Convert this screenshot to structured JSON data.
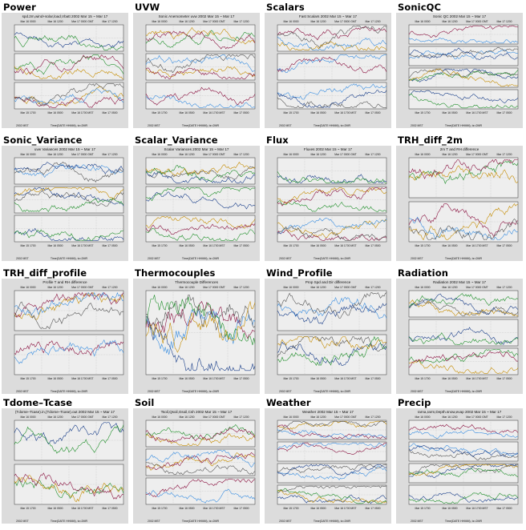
{
  "page": {
    "panels": [
      {
        "label": "Power",
        "header": "spd.2m,wind+solar,load,Vbatt 2002 Mar 15 ~ Mar 17",
        "kind": "stack3"
      },
      {
        "label": "UVW",
        "header": "Sonic Anemometer uvw 2002 Mar 15 ~ Mar 17",
        "kind": "stack3"
      },
      {
        "label": "Scalars",
        "header": "Fast Scalars 2002 Mar 15 ~ Mar 17",
        "kind": "stack3"
      },
      {
        "label": "SonicQC",
        "header": "Sonic QC 2002 Mar 15 ~ Mar 17",
        "kind": "stack4"
      },
      {
        "label": "Sonic_Variance",
        "header": "uvw Variances 2002 Mar 15 ~ Mar 17",
        "kind": "stack3"
      },
      {
        "label": "Scalar_Variance",
        "header": "Scalar Variances 2002 Mar 15 ~ Mar 17",
        "kind": "stack3"
      },
      {
        "label": "Flux",
        "header": "Fluxes 2002 Mar 15 ~ Mar 17",
        "kind": "stack3"
      },
      {
        "label": "TRH_diff_2m",
        "header": "2m T and RH difference",
        "kind": "stack2"
      },
      {
        "label": "TRH_diff_profile",
        "header": "Profile T and RH difference",
        "kind": "stack2"
      },
      {
        "label": "Thermocouples",
        "header": "Thermocouple Differences",
        "kind": "single"
      },
      {
        "label": "Wind_Profile",
        "header": "Prop Spd and Dir difference",
        "kind": "stack2"
      },
      {
        "label": "Radiation",
        "header": "Radiation 2002 Mar 15 ~ Mar 17",
        "kind": "stack3"
      },
      {
        "label": "Tdome–Tcase",
        "header": "(Tdome–Tcase).in,(Tdome–Tcase).out 2002 Mar 15 ~ Mar 17",
        "kind": "stack2"
      },
      {
        "label": "Soil",
        "header": "Tsoil,Qsoil,Gsoil,Csh 2002 Mar 15 ~ Mar 17",
        "kind": "stack3"
      },
      {
        "label": "Weather",
        "header": "Weather 2002 Mar 15 ~ Mar 17",
        "kind": "stack4"
      },
      {
        "label": "Precip",
        "header": "rarna,rarm,Depth.snow,evap 2002 Mar 15 ~ Mar 17",
        "kind": "stack4"
      }
    ],
    "axis": {
      "top_ticks": [
        "Mar 16 0000",
        "Mar 16 1200",
        "Mar 17 0000 GMT",
        "Mar 17 1200"
      ],
      "bottom_ticks": [
        "Mar 15 1700",
        "Mar 16 0500",
        "Mar 16 1700 MST",
        "Mar 17 0500"
      ],
      "xlabel": "Time(DATE HHMM), tz=2MR",
      "year": "2002 MST"
    },
    "colors": {
      "panel_bg": "#dcdcdc",
      "plot_bg": "#eeeeee",
      "grid": "#bdbdbd",
      "series": [
        "#1a3f8a",
        "#1f8f2a",
        "#c58c00",
        "#8a1240",
        "#3a8ee0",
        "#555555"
      ]
    }
  }
}
